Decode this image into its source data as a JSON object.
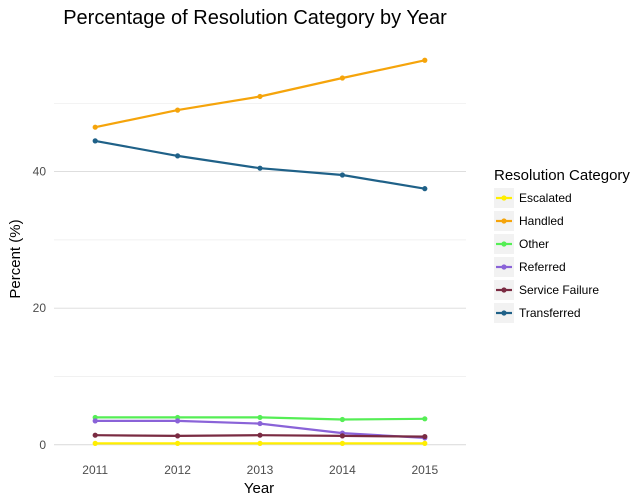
{
  "chart_data": {
    "type": "line",
    "title": "Percentage of Resolution Category by Year",
    "xlabel": "Year",
    "ylabel": "Percent (%)",
    "x": [
      2011,
      2012,
      2013,
      2014,
      2015
    ],
    "x_ticks": [
      "2011",
      "2012",
      "2013",
      "2014",
      "2015"
    ],
    "y_ticks": [
      "0",
      "20",
      "40"
    ],
    "xlim": [
      2010.5,
      2015.5
    ],
    "ylim": [
      -1.5,
      60
    ],
    "grid": true,
    "legend_position": "right",
    "legend_title": "Resolution Category",
    "series": [
      {
        "name": "Escalated",
        "color": "#ffee00",
        "values": [
          0.2,
          0.2,
          0.2,
          0.2,
          0.2
        ]
      },
      {
        "name": "Handled",
        "color": "#f5a40b",
        "values": [
          46.5,
          49.0,
          51.0,
          53.7,
          56.3
        ]
      },
      {
        "name": "Other",
        "color": "#55ee55",
        "values": [
          4.0,
          4.0,
          4.0,
          3.7,
          3.8
        ]
      },
      {
        "name": "Referred",
        "color": "#8a63d8",
        "values": [
          3.5,
          3.5,
          3.1,
          1.7,
          1.0
        ]
      },
      {
        "name": "Service Failure",
        "color": "#7a2b42",
        "values": [
          1.4,
          1.3,
          1.4,
          1.3,
          1.2
        ]
      },
      {
        "name": "Transferred",
        "color": "#1f6188",
        "values": [
          44.5,
          42.3,
          40.5,
          39.5,
          37.5
        ]
      }
    ]
  }
}
